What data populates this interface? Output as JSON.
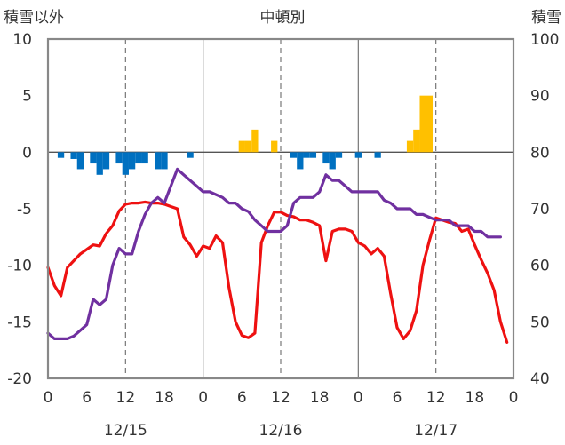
{
  "chart_data": {
    "type": "line+bar",
    "title": "中頓別",
    "left_axis_label": "積雪以外",
    "right_axis_label": "積雪",
    "left_ylim": [
      -20,
      10
    ],
    "left_yticks": [
      "10",
      "5",
      "0",
      "-5",
      "-10",
      "-15",
      "-20"
    ],
    "right_ylim": [
      40,
      100
    ],
    "right_yticks": [
      "100",
      "90",
      "80",
      "70",
      "60",
      "50",
      "40"
    ],
    "xlim": [
      0,
      72
    ],
    "x_tick_labels": [
      "0",
      "6",
      "12",
      "18",
      "0",
      "6",
      "12",
      "18",
      "0",
      "6",
      "12",
      "18",
      "0"
    ],
    "date_labels": [
      "12/15",
      "12/16",
      "12/17"
    ],
    "grid": "vertical dashed at 12h, solid day boundaries",
    "colors": {
      "temperature": "#ee1111",
      "snow_depth": "#7030a0",
      "precip_positive": "#ffc000",
      "precip_negative": "#0070c0",
      "grid": "#777777"
    },
    "bars": [
      {
        "x": 2,
        "v": -0.5
      },
      {
        "x": 4,
        "v": -0.6
      },
      {
        "x": 5,
        "v": -1.5
      },
      {
        "x": 7,
        "v": -1.0
      },
      {
        "x": 8,
        "v": -2.0
      },
      {
        "x": 9,
        "v": -1.5
      },
      {
        "x": 11,
        "v": -1.0
      },
      {
        "x": 12,
        "v": -2.0
      },
      {
        "x": 13,
        "v": -1.5
      },
      {
        "x": 14,
        "v": -1.0
      },
      {
        "x": 15,
        "v": -1.0
      },
      {
        "x": 17,
        "v": -1.5
      },
      {
        "x": 18,
        "v": -1.5
      },
      {
        "x": 22,
        "v": -0.5
      },
      {
        "x": 30,
        "v": 1.0
      },
      {
        "x": 31,
        "v": 1.0
      },
      {
        "x": 32,
        "v": 2.0
      },
      {
        "x": 35,
        "v": 1.0
      },
      {
        "x": 38,
        "v": -0.5
      },
      {
        "x": 39,
        "v": -1.5
      },
      {
        "x": 40,
        "v": -0.5
      },
      {
        "x": 41,
        "v": -0.5
      },
      {
        "x": 43,
        "v": -1.0
      },
      {
        "x": 44,
        "v": -1.5
      },
      {
        "x": 45,
        "v": -0.5
      },
      {
        "x": 48,
        "v": -0.5
      },
      {
        "x": 51,
        "v": -0.5
      },
      {
        "x": 56,
        "v": 1.0
      },
      {
        "x": 57,
        "v": 2.0
      },
      {
        "x": 58,
        "v": 5.0
      },
      {
        "x": 59,
        "v": 5.0
      }
    ],
    "series": [
      {
        "key": "temperature",
        "axis": "left",
        "points": [
          [
            0,
            -10.2
          ],
          [
            1,
            -11.8
          ],
          [
            2,
            -12.7
          ],
          [
            3,
            -10.2
          ],
          [
            5,
            -9.0
          ],
          [
            7,
            -8.2
          ],
          [
            8,
            -8.3
          ],
          [
            9,
            -7.2
          ],
          [
            10,
            -6.5
          ],
          [
            11,
            -5.2
          ],
          [
            12,
            -4.6
          ],
          [
            13,
            -4.5
          ],
          [
            14,
            -4.5
          ],
          [
            15,
            -4.4
          ],
          [
            16,
            -4.5
          ],
          [
            17,
            -4.5
          ],
          [
            18,
            -4.6
          ],
          [
            19,
            -4.8
          ],
          [
            20,
            -5.0
          ],
          [
            21,
            -7.5
          ],
          [
            22,
            -8.2
          ],
          [
            23,
            -9.2
          ],
          [
            24,
            -8.3
          ],
          [
            25,
            -8.5
          ],
          [
            26,
            -7.4
          ],
          [
            27,
            -8.0
          ],
          [
            28,
            -12.0
          ],
          [
            29,
            -15.0
          ],
          [
            30,
            -16.2
          ],
          [
            31,
            -16.4
          ],
          [
            32,
            -16.0
          ],
          [
            33,
            -8.0
          ],
          [
            34,
            -6.5
          ],
          [
            35,
            -5.3
          ],
          [
            36,
            -5.3
          ],
          [
            37,
            -5.6
          ],
          [
            38,
            -5.7
          ],
          [
            39,
            -6.0
          ],
          [
            40,
            -6.0
          ],
          [
            41,
            -6.2
          ],
          [
            42,
            -6.5
          ],
          [
            43,
            -9.6
          ],
          [
            44,
            -7.0
          ],
          [
            45,
            -6.8
          ],
          [
            46,
            -6.8
          ],
          [
            47,
            -7.0
          ],
          [
            48,
            -8.0
          ],
          [
            49,
            -8.3
          ],
          [
            50,
            -9.0
          ],
          [
            51,
            -8.5
          ],
          [
            52,
            -9.2
          ],
          [
            53,
            -12.5
          ],
          [
            54,
            -15.5
          ],
          [
            55,
            -16.5
          ],
          [
            56,
            -15.8
          ],
          [
            57,
            -14.0
          ],
          [
            58,
            -10.0
          ],
          [
            59,
            -7.8
          ],
          [
            60,
            -5.8
          ],
          [
            61,
            -6.0
          ],
          [
            62,
            -6.2
          ],
          [
            63,
            -6.3
          ],
          [
            64,
            -7.0
          ],
          [
            65,
            -6.8
          ],
          [
            66,
            -8.2
          ],
          [
            67,
            -9.5
          ],
          [
            68,
            -10.7
          ],
          [
            69,
            -12.2
          ],
          [
            70,
            -15.0
          ],
          [
            71,
            -16.8
          ]
        ]
      },
      {
        "key": "snow_depth",
        "axis": "right",
        "points": [
          [
            0,
            48
          ],
          [
            1,
            47
          ],
          [
            2,
            47
          ],
          [
            3,
            47
          ],
          [
            4,
            47.5
          ],
          [
            5,
            48.5
          ],
          [
            6,
            49.5
          ],
          [
            7,
            54
          ],
          [
            8,
            53
          ],
          [
            9,
            54
          ],
          [
            10,
            60
          ],
          [
            11,
            63
          ],
          [
            12,
            62
          ],
          [
            13,
            62
          ],
          [
            14,
            66
          ],
          [
            15,
            69
          ],
          [
            16,
            71
          ],
          [
            17,
            72
          ],
          [
            18,
            71
          ],
          [
            19,
            74
          ],
          [
            20,
            77
          ],
          [
            21,
            76
          ],
          [
            22,
            75
          ],
          [
            23,
            74
          ],
          [
            24,
            73
          ],
          [
            25,
            73
          ],
          [
            26,
            72.5
          ],
          [
            27,
            72
          ],
          [
            28,
            71
          ],
          [
            29,
            71
          ],
          [
            30,
            70
          ],
          [
            31,
            69.5
          ],
          [
            32,
            68
          ],
          [
            33,
            67
          ],
          [
            34,
            66
          ],
          [
            35,
            66
          ],
          [
            36,
            66
          ],
          [
            37,
            67
          ],
          [
            38,
            71
          ],
          [
            39,
            72
          ],
          [
            40,
            72
          ],
          [
            41,
            72
          ],
          [
            42,
            73
          ],
          [
            43,
            76
          ],
          [
            44,
            75
          ],
          [
            45,
            75
          ],
          [
            46,
            74
          ],
          [
            47,
            73
          ],
          [
            48,
            73
          ],
          [
            49,
            73
          ],
          [
            50,
            73
          ],
          [
            51,
            73
          ],
          [
            52,
            71.5
          ],
          [
            53,
            71
          ],
          [
            54,
            70
          ],
          [
            55,
            70
          ],
          [
            56,
            70
          ],
          [
            57,
            69
          ],
          [
            58,
            69
          ],
          [
            59,
            68.5
          ],
          [
            60,
            68
          ],
          [
            61,
            68
          ],
          [
            62,
            68
          ],
          [
            63,
            67
          ],
          [
            64,
            67
          ],
          [
            65,
            67
          ],
          [
            66,
            66
          ],
          [
            67,
            66
          ],
          [
            68,
            65
          ],
          [
            69,
            65
          ],
          [
            70,
            65
          ]
        ]
      }
    ]
  }
}
